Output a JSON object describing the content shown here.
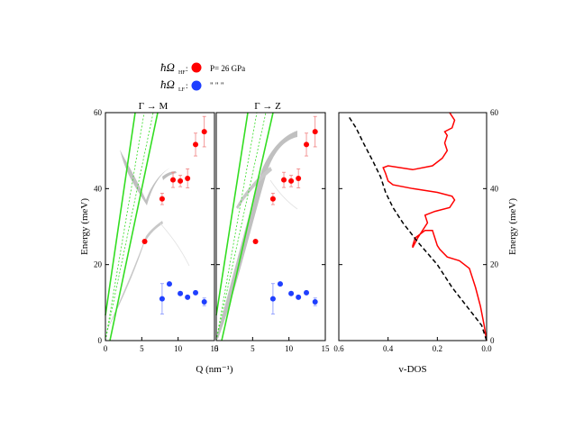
{
  "legend": {
    "hf_label": "ħΩ",
    "hf_sub": "HF",
    "hf_text": "P= 26 GPa",
    "lf_label": "ħΩ",
    "lf_sub": "LF",
    "lf_text": "\"     \"     \"",
    "hf_color": "#ff0000",
    "lf_color": "#1f3fff"
  },
  "chart_data": [
    {
      "type": "scatter",
      "panel": "Gamma-M",
      "direction": "Γ → M",
      "xlabel": "Q (nm⁻¹)",
      "ylabel": "Energy (meV)",
      "xlim": [
        0,
        15
      ],
      "ylim": [
        0,
        60
      ],
      "x_ticks": [
        0,
        5,
        10,
        15
      ],
      "y_ticks": [
        0,
        20,
        40,
        60
      ],
      "series": [
        {
          "name": "HF",
          "color": "#ff0000",
          "points": [
            {
              "x": 5.4,
              "y": 26.1,
              "err": 0
            },
            {
              "x": 7.8,
              "y": 37.3,
              "err": 1.5
            },
            {
              "x": 9.3,
              "y": 42.3,
              "err": 2.0
            },
            {
              "x": 10.3,
              "y": 42.0,
              "err": 1.5
            },
            {
              "x": 11.3,
              "y": 42.7,
              "err": 2.5
            },
            {
              "x": 12.4,
              "y": 51.6,
              "err": 3.0
            },
            {
              "x": 13.6,
              "y": 55.0,
              "err": 4.0
            }
          ]
        },
        {
          "name": "LF",
          "color": "#1f3fff",
          "points": [
            {
              "x": 7.8,
              "y": 11.0,
              "err": 4.0
            },
            {
              "x": 8.8,
              "y": 14.9,
              "err": 0
            },
            {
              "x": 10.3,
              "y": 12.4,
              "err": 0
            },
            {
              "x": 11.3,
              "y": 11.4,
              "err": 0
            },
            {
              "x": 12.4,
              "y": 12.6,
              "err": 0
            },
            {
              "x": 13.6,
              "y": 10.2,
              "err": 1.0
            }
          ]
        }
      ]
    },
    {
      "type": "scatter",
      "panel": "Gamma-Z",
      "direction": "Γ → Z",
      "xlabel": "Q (nm⁻¹)",
      "ylabel": "Energy (meV)",
      "xlim": [
        0,
        15
      ],
      "ylim": [
        0,
        60
      ],
      "x_ticks": [
        0,
        5,
        10,
        15
      ],
      "y_ticks": [
        0,
        20,
        40,
        60
      ],
      "series": [
        {
          "name": "HF",
          "color": "#ff0000",
          "points": [
            {
              "x": 5.4,
              "y": 26.1,
              "err": 0
            },
            {
              "x": 7.8,
              "y": 37.3,
              "err": 1.5
            },
            {
              "x": 9.3,
              "y": 42.3,
              "err": 2.0
            },
            {
              "x": 10.3,
              "y": 42.0,
              "err": 1.5
            },
            {
              "x": 11.3,
              "y": 42.7,
              "err": 2.5
            },
            {
              "x": 12.4,
              "y": 51.6,
              "err": 3.0
            },
            {
              "x": 13.6,
              "y": 55.0,
              "err": 4.0
            }
          ]
        },
        {
          "name": "LF",
          "color": "#1f3fff",
          "points": [
            {
              "x": 7.8,
              "y": 11.0,
              "err": 4.0
            },
            {
              "x": 8.8,
              "y": 14.9,
              "err": 0
            },
            {
              "x": 10.3,
              "y": 12.4,
              "err": 0
            },
            {
              "x": 11.3,
              "y": 11.4,
              "err": 0
            },
            {
              "x": 12.4,
              "y": 12.6,
              "err": 0
            },
            {
              "x": 13.6,
              "y": 10.2,
              "err": 1.0
            }
          ]
        }
      ]
    },
    {
      "type": "line",
      "panel": "v-DOS",
      "xlabel": "v-DOS",
      "ylabel": "Energy (meV)",
      "xlim": [
        0.6,
        0.0
      ],
      "ylim": [
        0,
        60
      ],
      "x_ticks": [
        0.6,
        0.4,
        0.2,
        0.0
      ],
      "x_tick_labels": [
        "0.6",
        "0.4",
        "0.2",
        "0.0"
      ],
      "y_ticks": [
        0,
        20,
        40,
        60
      ],
      "series": [
        {
          "name": "v-DOS (solid)",
          "color": "#ff0000",
          "style": "solid",
          "points": [
            [
              0.0,
              0
            ],
            [
              0.01,
              4
            ],
            [
              0.025,
              9
            ],
            [
              0.045,
              14
            ],
            [
              0.07,
              19
            ],
            [
              0.11,
              21
            ],
            [
              0.16,
              22
            ],
            [
              0.19,
              24
            ],
            [
              0.2,
              25
            ],
            [
              0.21,
              27
            ],
            [
              0.22,
              29
            ],
            [
              0.25,
              29
            ],
            [
              0.29,
              27
            ],
            [
              0.3,
              25
            ],
            [
              0.3,
              24.5
            ],
            [
              0.28,
              27
            ],
            [
              0.24,
              31
            ],
            [
              0.25,
              33
            ],
            [
              0.21,
              34
            ],
            [
              0.15,
              35
            ],
            [
              0.13,
              37
            ],
            [
              0.14,
              38
            ],
            [
              0.2,
              39
            ],
            [
              0.3,
              40
            ],
            [
              0.38,
              41
            ],
            [
              0.4,
              42
            ],
            [
              0.41,
              44
            ],
            [
              0.42,
              45.5
            ],
            [
              0.4,
              46
            ],
            [
              0.3,
              45
            ],
            [
              0.22,
              46
            ],
            [
              0.18,
              48
            ],
            [
              0.16,
              50
            ],
            [
              0.17,
              52
            ],
            [
              0.16,
              54
            ],
            [
              0.17,
              55
            ],
            [
              0.14,
              56
            ],
            [
              0.13,
              58
            ],
            [
              0.15,
              60
            ]
          ]
        },
        {
          "name": "v-DOS (dashed)",
          "color": "#000000",
          "style": "dashed",
          "points": [
            [
              0.0,
              0
            ],
            [
              0.02,
              4
            ],
            [
              0.08,
              9
            ],
            [
              0.14,
              14
            ],
            [
              0.2,
              20
            ],
            [
              0.28,
              26
            ],
            [
              0.34,
              31
            ],
            [
              0.38,
              35
            ],
            [
              0.41,
              39
            ],
            [
              0.43,
              43
            ],
            [
              0.46,
              47
            ],
            [
              0.5,
              52
            ],
            [
              0.53,
              56
            ],
            [
              0.56,
              59
            ]
          ]
        }
      ]
    }
  ]
}
